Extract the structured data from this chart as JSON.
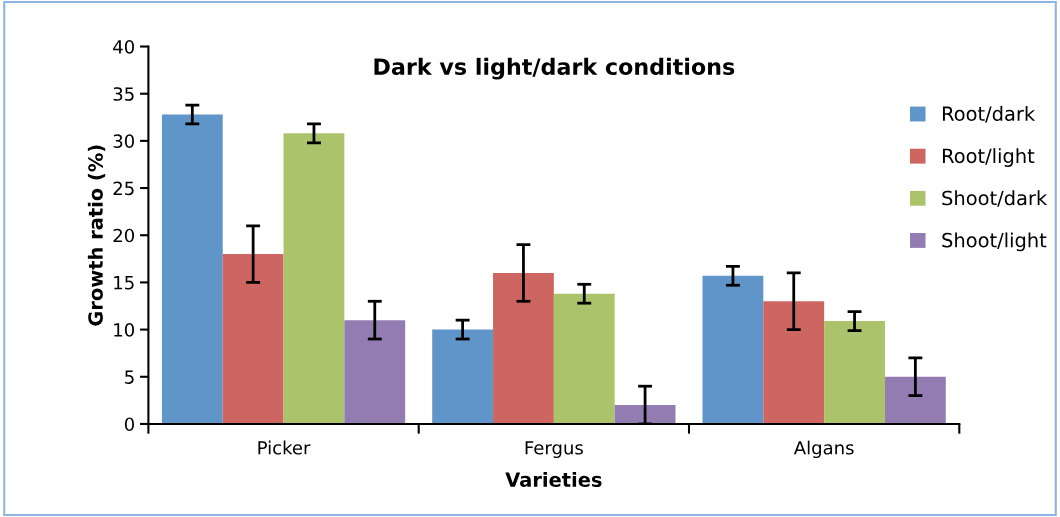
{
  "chart_data": {
    "type": "bar",
    "title": "Dark vs light/dark conditions",
    "xlabel": "Varieties",
    "ylabel": "Growth ratio (%)",
    "categories": [
      "Picker",
      "Fergus",
      "Algans"
    ],
    "series": [
      {
        "name": "Root/dark",
        "color": "#5f95c8",
        "values": [
          32.8,
          10,
          15.7
        ],
        "errors": [
          1,
          1,
          1
        ]
      },
      {
        "name": "Root/light",
        "color": "#cd6660",
        "values": [
          18,
          16,
          13
        ],
        "errors": [
          3,
          3,
          3
        ]
      },
      {
        "name": "Shoot/dark",
        "color": "#abc46b",
        "values": [
          30.8,
          13.8,
          10.9
        ],
        "errors": [
          1,
          1,
          1
        ]
      },
      {
        "name": "Shoot/light",
        "color": "#937cb2",
        "values": [
          11,
          2,
          5
        ],
        "errors": [
          2,
          2,
          2
        ]
      }
    ],
    "ylim": [
      0,
      40
    ],
    "yticks": [
      0,
      5,
      10,
      15,
      20,
      25,
      30,
      35,
      40
    ],
    "grid": false,
    "legend": "right"
  }
}
